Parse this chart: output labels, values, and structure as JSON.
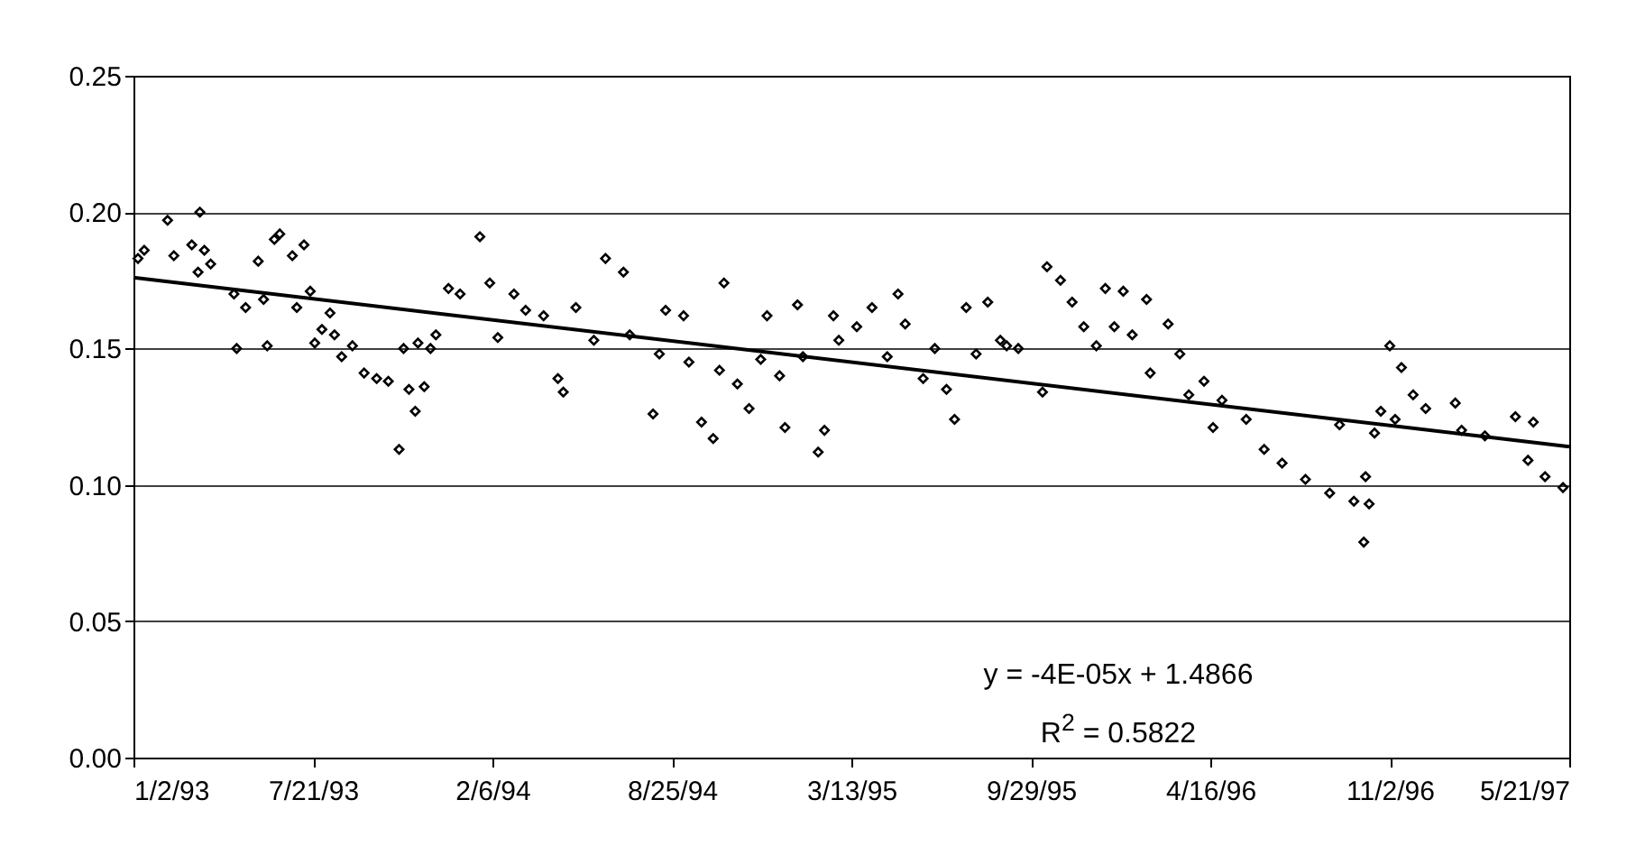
{
  "chart_data": {
    "type": "scatter",
    "xlim": [
      "1993-01-02",
      "1997-05-21"
    ],
    "xticks": [
      {
        "value": "1993-01-02",
        "label": "1/2/93"
      },
      {
        "value": "1993-07-21",
        "label": "7/21/93"
      },
      {
        "value": "1994-02-06",
        "label": "2/6/94"
      },
      {
        "value": "1994-08-25",
        "label": "8/25/94"
      },
      {
        "value": "1995-03-13",
        "label": "3/13/95"
      },
      {
        "value": "1995-09-29",
        "label": "9/29/95"
      },
      {
        "value": "1996-04-16",
        "label": "4/16/96"
      },
      {
        "value": "1996-11-02",
        "label": "11/2/96"
      },
      {
        "value": "1997-05-21",
        "label": "5/21/97"
      }
    ],
    "ylim": [
      0,
      0.25
    ],
    "yticks": [
      {
        "value": 0,
        "label": "0.00"
      },
      {
        "value": 0.05,
        "label": "0.05"
      },
      {
        "value": 0.1,
        "label": "0.10"
      },
      {
        "value": 0.15,
        "label": "0.15"
      },
      {
        "value": 0.2,
        "label": "0.20"
      },
      {
        "value": 0.25,
        "label": "0.25"
      }
    ],
    "grid": "y",
    "series": [
      {
        "marker": "diamond",
        "color": "#000000",
        "x": [
          "1993-01-07",
          "1993-01-14",
          "1993-02-09",
          "1993-02-16",
          "1993-03-08",
          "1993-03-15",
          "1993-03-17",
          "1993-03-22",
          "1993-03-29",
          "1993-04-24",
          "1993-04-27",
          "1993-05-07",
          "1993-05-21",
          "1993-05-27",
          "1993-05-31",
          "1993-06-08",
          "1993-06-14",
          "1993-06-28",
          "1993-07-03",
          "1993-07-11",
          "1993-07-18",
          "1993-07-23",
          "1993-07-31",
          "1993-08-09",
          "1993-08-14",
          "1993-08-22",
          "1993-09-03",
          "1993-09-16",
          "1993-09-30",
          "1993-10-13",
          "1993-10-25",
          "1993-10-30",
          "1993-11-05",
          "1993-11-12",
          "1993-11-15",
          "1993-11-22",
          "1993-11-29",
          "1993-12-05",
          "1993-12-19",
          "1994-01-01",
          "1994-01-23",
          "1994-02-03",
          "1994-02-12",
          "1994-03-02",
          "1994-03-15",
          "1994-04-04",
          "1994-04-20",
          "1994-04-26",
          "1994-05-10",
          "1994-05-30",
          "1994-06-12",
          "1994-07-02",
          "1994-07-09",
          "1994-08-04",
          "1994-08-11",
          "1994-08-18",
          "1994-09-07",
          "1994-09-13",
          "1994-09-27",
          "1994-10-10",
          "1994-10-17",
          "1994-10-22",
          "1994-11-06",
          "1994-11-19",
          "1994-12-02",
          "1994-12-09",
          "1994-12-23",
          "1994-12-29",
          "1995-01-12",
          "1995-01-18",
          "1995-02-04",
          "1995-02-11",
          "1995-02-21",
          "1995-02-27",
          "1995-03-19",
          "1995-04-05",
          "1995-04-22",
          "1995-05-04",
          "1995-05-12",
          "1995-06-01",
          "1995-06-14",
          "1995-06-27",
          "1995-07-06",
          "1995-07-19",
          "1995-07-30",
          "1995-08-12",
          "1995-08-26",
          "1995-09-02",
          "1995-09-15",
          "1995-10-12",
          "1995-10-17",
          "1995-11-01",
          "1995-11-14",
          "1995-11-27",
          "1995-12-11",
          "1995-12-21",
          "1995-12-31",
          "1996-01-10",
          "1996-01-20",
          "1996-02-05",
          "1996-02-09",
          "1996-02-29",
          "1996-03-13",
          "1996-03-23",
          "1996-04-09",
          "1996-04-19",
          "1996-04-29",
          "1996-05-26",
          "1996-06-15",
          "1996-07-05",
          "1996-07-31",
          "1996-08-27",
          "1996-09-07",
          "1996-09-23",
          "1996-10-04",
          "1996-10-06",
          "1996-10-10",
          "1996-10-16",
          "1996-10-23",
          "1996-11-02",
          "1996-11-08",
          "1996-11-15",
          "1996-11-28",
          "1996-12-12",
          "1997-01-14",
          "1997-01-21",
          "1997-02-16",
          "1997-03-22",
          "1997-04-05",
          "1997-04-11",
          "1997-04-24",
          "1997-05-14"
        ],
        "values": [
          0.183,
          0.186,
          0.197,
          0.184,
          0.188,
          0.178,
          0.2,
          0.186,
          0.181,
          0.17,
          0.15,
          0.165,
          0.182,
          0.168,
          0.151,
          0.19,
          0.192,
          0.184,
          0.165,
          0.188,
          0.171,
          0.152,
          0.157,
          0.163,
          0.155,
          0.147,
          0.151,
          0.141,
          0.139,
          0.138,
          0.113,
          0.15,
          0.135,
          0.127,
          0.152,
          0.136,
          0.15,
          0.155,
          0.172,
          0.17,
          0.191,
          0.174,
          0.154,
          0.17,
          0.164,
          0.162,
          0.139,
          0.134,
          0.165,
          0.153,
          0.183,
          0.178,
          0.155,
          0.126,
          0.148,
          0.164,
          0.162,
          0.145,
          0.123,
          0.117,
          0.142,
          0.174,
          0.137,
          0.128,
          0.146,
          0.162,
          0.14,
          0.121,
          0.166,
          0.147,
          0.112,
          0.12,
          0.162,
          0.153,
          0.158,
          0.165,
          0.147,
          0.17,
          0.159,
          0.139,
          0.15,
          0.135,
          0.124,
          0.165,
          0.148,
          0.167,
          0.153,
          0.151,
          0.15,
          0.134,
          0.18,
          0.175,
          0.167,
          0.158,
          0.151,
          0.172,
          0.158,
          0.171,
          0.155,
          0.168,
          0.141,
          0.159,
          0.148,
          0.133,
          0.138,
          0.121,
          0.131,
          0.124,
          0.113,
          0.108,
          0.102,
          0.097,
          0.122,
          0.094,
          0.079,
          0.103,
          0.093,
          0.119,
          0.127,
          0.151,
          0.124,
          0.143,
          0.133,
          0.128,
          0.13,
          0.12,
          0.118,
          0.125,
          0.109,
          0.123,
          0.103,
          0.099
        ]
      },
      {
        "type": "line",
        "color": "#000000",
        "x": [
          "1993-01-02",
          "1997-05-21"
        ],
        "values": [
          0.176,
          0.114
        ]
      }
    ],
    "annotations": [
      "y = -4E-05x + 1.4866",
      "R$^{2}$ = 0.5822"
    ]
  }
}
